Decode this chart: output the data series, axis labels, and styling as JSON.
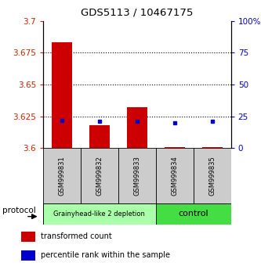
{
  "title": "GDS5113 / 10467175",
  "samples": [
    "GSM999831",
    "GSM999832",
    "GSM999833",
    "GSM999834",
    "GSM999835"
  ],
  "red_bar_bottom": [
    3.6,
    3.6,
    3.6,
    3.5985,
    3.599
  ],
  "red_bar_top": [
    3.683,
    3.618,
    3.632,
    3.601,
    3.601
  ],
  "blue_percentiles": [
    22,
    21,
    21,
    20,
    21
  ],
  "ylim_min": 3.6,
  "ylim_max": 3.7,
  "yticks_left": [
    3.6,
    3.625,
    3.65,
    3.675,
    3.7
  ],
  "yticks_right": [
    0,
    25,
    50,
    75,
    100
  ],
  "groups": [
    {
      "label": "Grainyhead-like 2 depletion",
      "samples": [
        0,
        1,
        2
      ],
      "color": "#aaffaa"
    },
    {
      "label": "control",
      "samples": [
        3,
        4
      ],
      "color": "#44dd44"
    }
  ],
  "group_box_color": "#cccccc",
  "bar_color_red": "#cc0000",
  "bar_color_blue": "#0000cc",
  "legend_red": "transformed count",
  "legend_blue": "percentile rank within the sample",
  "protocol_label": "protocol",
  "tick_color_left": "#cc2200",
  "tick_color_right": "#0000cc",
  "grid_lines_pct": [
    25,
    50,
    75
  ]
}
